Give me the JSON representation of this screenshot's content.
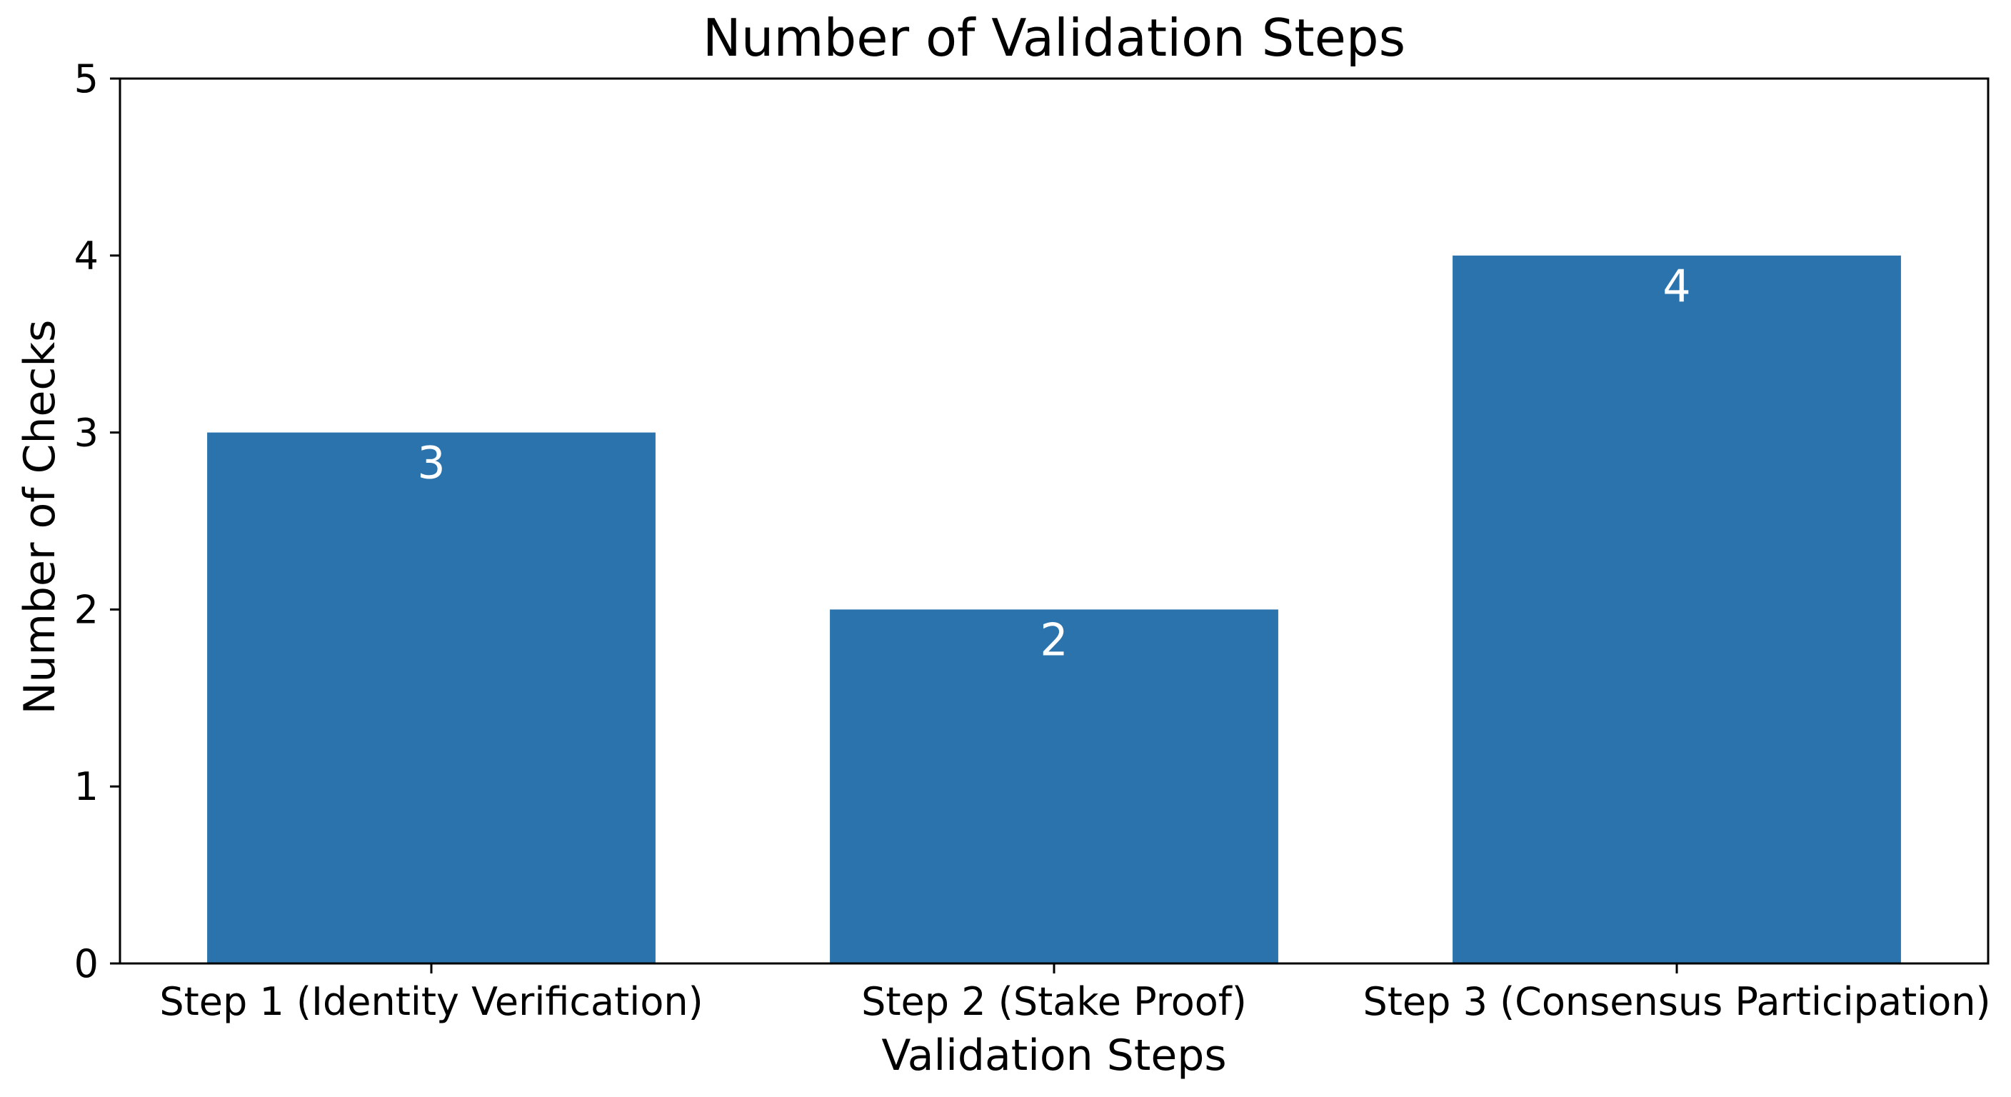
{
  "chart_data": {
    "type": "bar",
    "title": "Number of Validation Steps",
    "xlabel": "Validation Steps",
    "ylabel": "Number of Checks",
    "categories": [
      "Step 1 (Identity Verification)",
      "Step 2 (Stake Proof)",
      "Step 3 (Consensus Participation)"
    ],
    "values": [
      3,
      2,
      4
    ],
    "value_labels": [
      "3",
      "2",
      "4"
    ],
    "ylim": [
      0,
      5
    ],
    "yticks": [
      0,
      1,
      2,
      3,
      4,
      5
    ],
    "ytick_labels": [
      "0",
      "1",
      "2",
      "3",
      "4",
      "5"
    ],
    "grid": false,
    "bar_color": "#2a73ac",
    "value_label_position": "inside-top"
  }
}
